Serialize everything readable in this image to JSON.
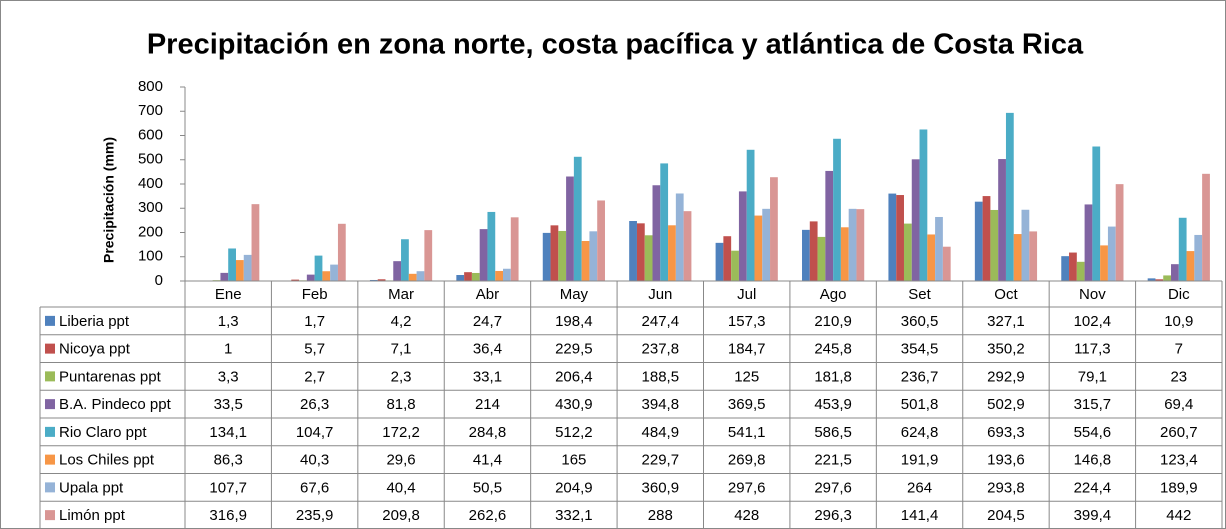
{
  "chart_data": {
    "type": "bar",
    "title": "Precipitación en zona norte, costa pacífica y atlántica de Costa Rica",
    "ylabel": "Precipitación (mm)",
    "categories": [
      "Ene",
      "Feb",
      "Mar",
      "Abr",
      "May",
      "Jun",
      "Jul",
      "Ago",
      "Set",
      "Oct",
      "Nov",
      "Dic"
    ],
    "ylim": [
      0,
      800
    ],
    "yticks": [
      0,
      100,
      200,
      300,
      400,
      500,
      600,
      700,
      800
    ],
    "grid": false,
    "series": [
      {
        "name": "Liberia ppt",
        "color": "#4f81bd",
        "values": [
          1.3,
          1.7,
          4.2,
          24.7,
          198.4,
          247.4,
          157.3,
          210.9,
          360.5,
          327.1,
          102.4,
          10.9
        ],
        "value_labels": [
          "1,3",
          "1,7",
          "4,2",
          "24,7",
          "198,4",
          "247,4",
          "157,3",
          "210,9",
          "360,5",
          "327,1",
          "102,4",
          "10,9"
        ]
      },
      {
        "name": "Nicoya ppt",
        "color": "#c0504d",
        "values": [
          1,
          5.7,
          7.1,
          36.4,
          229.5,
          237.8,
          184.7,
          245.8,
          354.5,
          350.2,
          117.3,
          7
        ],
        "value_labels": [
          "1",
          "5,7",
          "7,1",
          "36,4",
          "229,5",
          "237,8",
          "184,7",
          "245,8",
          "354,5",
          "350,2",
          "117,3",
          "7"
        ]
      },
      {
        "name": "Puntarenas ppt",
        "color": "#9bbb59",
        "values": [
          3.3,
          2.7,
          2.3,
          33.1,
          206.4,
          188.5,
          125,
          181.8,
          236.7,
          292.9,
          79.1,
          23
        ],
        "value_labels": [
          "3,3",
          "2,7",
          "2,3",
          "33,1",
          "206,4",
          "188,5",
          "125",
          "181,8",
          "236,7",
          "292,9",
          "79,1",
          "23"
        ]
      },
      {
        "name": "B.A. Pindeco ppt",
        "color": "#8064a2",
        "values": [
          33.5,
          26.3,
          81.8,
          214,
          430.9,
          394.8,
          369.5,
          453.9,
          501.8,
          502.9,
          315.7,
          69.4
        ],
        "value_labels": [
          "33,5",
          "26,3",
          "81,8",
          "214",
          "430,9",
          "394,8",
          "369,5",
          "453,9",
          "501,8",
          "502,9",
          "315,7",
          "69,4"
        ]
      },
      {
        "name": "Rio Claro ppt",
        "color": "#4bacc6",
        "values": [
          134.1,
          104.7,
          172.2,
          284.8,
          512.2,
          484.9,
          541.1,
          586.5,
          624.8,
          693.3,
          554.6,
          260.7
        ],
        "value_labels": [
          "134,1",
          "104,7",
          "172,2",
          "284,8",
          "512,2",
          "484,9",
          "541,1",
          "586,5",
          "624,8",
          "693,3",
          "554,6",
          "260,7"
        ]
      },
      {
        "name": "Los Chiles ppt",
        "color": "#f79646",
        "values": [
          86.3,
          40.3,
          29.6,
          41.4,
          165,
          229.7,
          269.8,
          221.5,
          191.9,
          193.6,
          146.8,
          123.4
        ],
        "value_labels": [
          "86,3",
          "40,3",
          "29,6",
          "41,4",
          "165",
          "229,7",
          "269,8",
          "221,5",
          "191,9",
          "193,6",
          "146,8",
          "123,4"
        ]
      },
      {
        "name": "Upala ppt",
        "color": "#95b3d7",
        "values": [
          107.7,
          67.6,
          40.4,
          50.5,
          204.9,
          360.9,
          297.6,
          297.6,
          264,
          293.8,
          224.4,
          189.9
        ],
        "value_labels": [
          "107,7",
          "67,6",
          "40,4",
          "50,5",
          "204,9",
          "360,9",
          "297,6",
          "297,6",
          "264",
          "293,8",
          "224,4",
          "189,9"
        ]
      },
      {
        "name": "Limón ppt",
        "color": "#d99694",
        "values": [
          316.9,
          235.9,
          209.8,
          262.6,
          332.1,
          288,
          428,
          296.3,
          141.4,
          204.5,
          399.4,
          442
        ],
        "value_labels": [
          "316,9",
          "235,9",
          "209,8",
          "262,6",
          "332,1",
          "288",
          "428",
          "296,3",
          "141,4",
          "204,5",
          "399,4",
          "442"
        ]
      }
    ]
  }
}
